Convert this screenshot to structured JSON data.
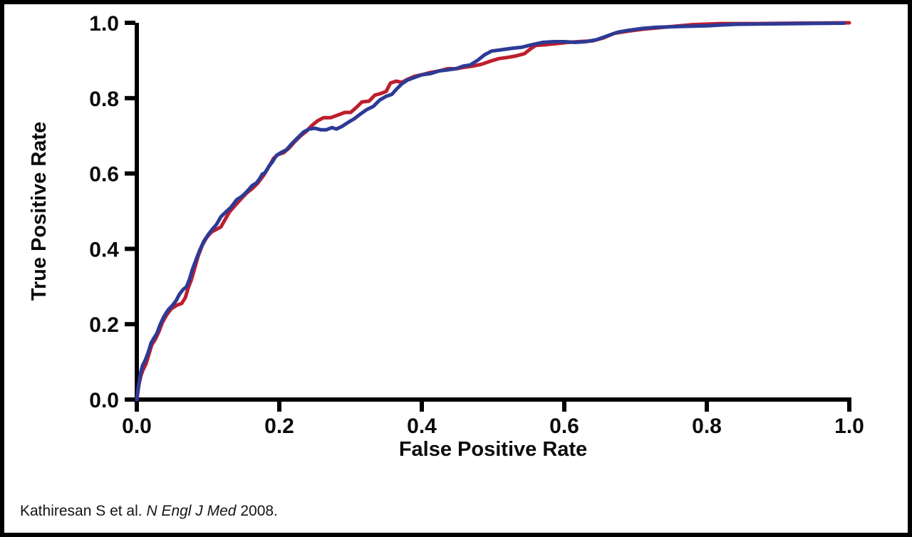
{
  "citation": {
    "prefix": "Kathiresan S et al. ",
    "journal": "N Engl J Med",
    "suffix": " 2008."
  },
  "colors": {
    "background": "#ffffff",
    "border": "#000000",
    "axis": "#000000",
    "text": "#0b0b0b",
    "series_red": "#be1e2d",
    "series_blue": "#2d3a96"
  },
  "chart_data": {
    "type": "line",
    "title": "",
    "xlabel": "False Positive Rate",
    "ylabel": "True Positive Rate",
    "xlim": [
      0,
      1
    ],
    "ylim": [
      0,
      1
    ],
    "grid": false,
    "legend": "none",
    "x_ticks": {
      "values": [
        0.0,
        0.2,
        0.4,
        0.6,
        0.8,
        1.0
      ],
      "labels": [
        "0.0",
        "0.2",
        "0.4",
        "0.6",
        "0.8",
        "1.0"
      ]
    },
    "y_ticks": {
      "values": [
        0.0,
        0.2,
        0.4,
        0.6,
        0.8,
        1.0
      ],
      "labels": [
        "0.0",
        "0.2",
        "0.4",
        "0.6",
        "0.8",
        "1.0"
      ]
    },
    "series": [
      {
        "name": "red",
        "color": "#be1e2d",
        "stroke_width": 5,
        "points": [
          [
            0.0,
            0.0
          ],
          [
            0.003,
            0.04
          ],
          [
            0.006,
            0.065
          ],
          [
            0.009,
            0.08
          ],
          [
            0.013,
            0.095
          ],
          [
            0.017,
            0.12
          ],
          [
            0.021,
            0.145
          ],
          [
            0.026,
            0.16
          ],
          [
            0.031,
            0.18
          ],
          [
            0.036,
            0.205
          ],
          [
            0.042,
            0.225
          ],
          [
            0.048,
            0.24
          ],
          [
            0.054,
            0.248
          ],
          [
            0.058,
            0.252
          ],
          [
            0.063,
            0.255
          ],
          [
            0.068,
            0.27
          ],
          [
            0.072,
            0.295
          ],
          [
            0.076,
            0.315
          ],
          [
            0.08,
            0.34
          ],
          [
            0.086,
            0.38
          ],
          [
            0.092,
            0.41
          ],
          [
            0.098,
            0.43
          ],
          [
            0.105,
            0.445
          ],
          [
            0.112,
            0.452
          ],
          [
            0.118,
            0.458
          ],
          [
            0.124,
            0.478
          ],
          [
            0.13,
            0.498
          ],
          [
            0.138,
            0.515
          ],
          [
            0.146,
            0.532
          ],
          [
            0.154,
            0.548
          ],
          [
            0.162,
            0.56
          ],
          [
            0.17,
            0.575
          ],
          [
            0.178,
            0.595
          ],
          [
            0.186,
            0.62
          ],
          [
            0.192,
            0.64
          ],
          [
            0.198,
            0.65
          ],
          [
            0.206,
            0.655
          ],
          [
            0.214,
            0.668
          ],
          [
            0.222,
            0.685
          ],
          [
            0.23,
            0.7
          ],
          [
            0.238,
            0.712
          ],
          [
            0.246,
            0.728
          ],
          [
            0.254,
            0.74
          ],
          [
            0.262,
            0.748
          ],
          [
            0.272,
            0.748
          ],
          [
            0.282,
            0.755
          ],
          [
            0.292,
            0.762
          ],
          [
            0.3,
            0.762
          ],
          [
            0.308,
            0.775
          ],
          [
            0.316,
            0.79
          ],
          [
            0.326,
            0.792
          ],
          [
            0.334,
            0.808
          ],
          [
            0.342,
            0.812
          ],
          [
            0.35,
            0.818
          ],
          [
            0.356,
            0.84
          ],
          [
            0.364,
            0.845
          ],
          [
            0.372,
            0.842
          ],
          [
            0.38,
            0.85
          ],
          [
            0.39,
            0.858
          ],
          [
            0.4,
            0.862
          ],
          [
            0.412,
            0.868
          ],
          [
            0.424,
            0.872
          ],
          [
            0.436,
            0.878
          ],
          [
            0.448,
            0.878
          ],
          [
            0.46,
            0.882
          ],
          [
            0.472,
            0.885
          ],
          [
            0.484,
            0.89
          ],
          [
            0.496,
            0.898
          ],
          [
            0.508,
            0.905
          ],
          [
            0.52,
            0.908
          ],
          [
            0.532,
            0.912
          ],
          [
            0.544,
            0.918
          ],
          [
            0.552,
            0.93
          ],
          [
            0.56,
            0.94
          ],
          [
            0.575,
            0.942
          ],
          [
            0.59,
            0.945
          ],
          [
            0.605,
            0.948
          ],
          [
            0.62,
            0.95
          ],
          [
            0.64,
            0.952
          ],
          [
            0.655,
            0.96
          ],
          [
            0.67,
            0.972
          ],
          [
            0.69,
            0.978
          ],
          [
            0.71,
            0.983
          ],
          [
            0.74,
            0.988
          ],
          [
            0.78,
            0.995
          ],
          [
            0.82,
            0.998
          ],
          [
            0.87,
            0.998
          ],
          [
            0.93,
            0.999
          ],
          [
            1.0,
            1.0
          ]
        ]
      },
      {
        "name": "blue",
        "color": "#2d3a96",
        "stroke_width": 5,
        "points": [
          [
            0.0,
            0.0
          ],
          [
            0.002,
            0.03
          ],
          [
            0.004,
            0.055
          ],
          [
            0.006,
            0.075
          ],
          [
            0.008,
            0.09
          ],
          [
            0.012,
            0.105
          ],
          [
            0.016,
            0.125
          ],
          [
            0.02,
            0.15
          ],
          [
            0.024,
            0.163
          ],
          [
            0.028,
            0.175
          ],
          [
            0.033,
            0.2
          ],
          [
            0.038,
            0.22
          ],
          [
            0.044,
            0.238
          ],
          [
            0.05,
            0.25
          ],
          [
            0.055,
            0.262
          ],
          [
            0.06,
            0.28
          ],
          [
            0.065,
            0.292
          ],
          [
            0.07,
            0.3
          ],
          [
            0.074,
            0.32
          ],
          [
            0.078,
            0.345
          ],
          [
            0.082,
            0.365
          ],
          [
            0.088,
            0.395
          ],
          [
            0.094,
            0.42
          ],
          [
            0.1,
            0.437
          ],
          [
            0.106,
            0.452
          ],
          [
            0.112,
            0.465
          ],
          [
            0.118,
            0.485
          ],
          [
            0.125,
            0.498
          ],
          [
            0.132,
            0.51
          ],
          [
            0.14,
            0.53
          ],
          [
            0.148,
            0.54
          ],
          [
            0.155,
            0.553
          ],
          [
            0.162,
            0.568
          ],
          [
            0.168,
            0.575
          ],
          [
            0.172,
            0.585
          ],
          [
            0.176,
            0.598
          ],
          [
            0.18,
            0.602
          ],
          [
            0.185,
            0.618
          ],
          [
            0.19,
            0.63
          ],
          [
            0.196,
            0.648
          ],
          [
            0.202,
            0.655
          ],
          [
            0.21,
            0.663
          ],
          [
            0.218,
            0.68
          ],
          [
            0.226,
            0.695
          ],
          [
            0.234,
            0.71
          ],
          [
            0.242,
            0.718
          ],
          [
            0.25,
            0.72
          ],
          [
            0.258,
            0.716
          ],
          [
            0.266,
            0.716
          ],
          [
            0.274,
            0.722
          ],
          [
            0.28,
            0.718
          ],
          [
            0.288,
            0.725
          ],
          [
            0.296,
            0.735
          ],
          [
            0.305,
            0.745
          ],
          [
            0.314,
            0.758
          ],
          [
            0.323,
            0.77
          ],
          [
            0.332,
            0.778
          ],
          [
            0.341,
            0.795
          ],
          [
            0.35,
            0.805
          ],
          [
            0.358,
            0.81
          ],
          [
            0.365,
            0.825
          ],
          [
            0.372,
            0.838
          ],
          [
            0.38,
            0.848
          ],
          [
            0.39,
            0.855
          ],
          [
            0.4,
            0.862
          ],
          [
            0.412,
            0.865
          ],
          [
            0.424,
            0.872
          ],
          [
            0.436,
            0.875
          ],
          [
            0.448,
            0.878
          ],
          [
            0.458,
            0.885
          ],
          [
            0.468,
            0.888
          ],
          [
            0.478,
            0.9
          ],
          [
            0.488,
            0.915
          ],
          [
            0.498,
            0.925
          ],
          [
            0.51,
            0.928
          ],
          [
            0.525,
            0.932
          ],
          [
            0.54,
            0.935
          ],
          [
            0.555,
            0.942
          ],
          [
            0.57,
            0.948
          ],
          [
            0.585,
            0.95
          ],
          [
            0.6,
            0.95
          ],
          [
            0.615,
            0.948
          ],
          [
            0.63,
            0.95
          ],
          [
            0.645,
            0.955
          ],
          [
            0.66,
            0.965
          ],
          [
            0.675,
            0.975
          ],
          [
            0.69,
            0.98
          ],
          [
            0.71,
            0.985
          ],
          [
            0.73,
            0.988
          ],
          [
            0.76,
            0.99
          ],
          [
            0.8,
            0.992
          ],
          [
            0.84,
            0.996
          ],
          [
            0.88,
            0.997
          ],
          [
            0.93,
            0.998
          ],
          [
            0.993,
            0.999
          ]
        ]
      }
    ]
  }
}
